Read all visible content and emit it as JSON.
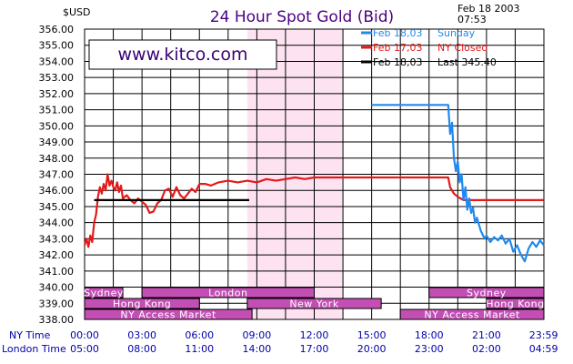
{
  "chart_data": {
    "type": "line",
    "title": "24 Hour Spot Gold (Bid)",
    "ylabel": "$USD",
    "date_line1": "Feb 18 2003",
    "date_line2": "07:53",
    "watermark": "www.kitco.com",
    "ylim": [
      338.0,
      356.0
    ],
    "y_ticks": [
      "338.00",
      "339.00",
      "340.00",
      "341.00",
      "342.00",
      "343.00",
      "344.00",
      "345.00",
      "346.00",
      "347.00",
      "348.00",
      "349.00",
      "350.00",
      "351.00",
      "352.00",
      "353.00",
      "354.00",
      "355.00",
      "356.00"
    ],
    "x_row1_title": "NY Time",
    "x_row2_title": "London Time",
    "x_ticks_ny": [
      "00:00",
      "03:00",
      "06:00",
      "09:00",
      "12:00",
      "15:00",
      "18:00",
      "21:00",
      "23:59"
    ],
    "x_ticks_london": [
      "05:00",
      "08:00",
      "11:00",
      "14:00",
      "17:00",
      "20:00",
      "23:00",
      "02:00",
      "04:59"
    ],
    "x_tick_hours": [
      0,
      3,
      6,
      9,
      12,
      15,
      18,
      21,
      23.983
    ],
    "highlight_hours": [
      8.5,
      13.5
    ],
    "legend": [
      {
        "label": "Feb 18,03",
        "note": "Sunday",
        "color": "#2288ee"
      },
      {
        "label": "Feb 17,03",
        "note": "NY Closed",
        "color": "#e31a1a"
      },
      {
        "label": "Feb 18,03",
        "note": "Last 345.40",
        "color": "#000000"
      }
    ],
    "sessions": [
      {
        "label": "Sydney",
        "start": 0,
        "end": 2,
        "row": 0
      },
      {
        "label": "London",
        "start": 3,
        "end": 12,
        "row": 0
      },
      {
        "label": "Sydney",
        "start": 18,
        "end": 24,
        "row": 0
      },
      {
        "label": "Hong Kong",
        "start": 0,
        "end": 6,
        "row": 1
      },
      {
        "label": "New York",
        "start": 8.5,
        "end": 15.5,
        "row": 1
      },
      {
        "label": "Hong Kong",
        "start": 21,
        "end": 24,
        "row": 1
      },
      {
        "label": "NY Access Market",
        "start": 0,
        "end": 8.75,
        "row": 2
      },
      {
        "label": "NY Access Market",
        "start": 16.5,
        "end": 24,
        "row": 2
      }
    ],
    "series": [
      {
        "name": "Feb 17,03",
        "color": "#e31a1a",
        "x": [
          0,
          0.1,
          0.2,
          0.3,
          0.4,
          0.5,
          0.6,
          0.7,
          0.8,
          0.9,
          1.0,
          1.1,
          1.2,
          1.3,
          1.4,
          1.5,
          1.6,
          1.7,
          1.8,
          1.9,
          2.0,
          2.2,
          2.4,
          2.6,
          2.8,
          3.0,
          3.2,
          3.4,
          3.6,
          3.8,
          4.0,
          4.2,
          4.4,
          4.6,
          4.8,
          5.0,
          5.2,
          5.4,
          5.6,
          5.8,
          6.0,
          6.3,
          6.6,
          7.0,
          7.5,
          8.0,
          8.5,
          9.0,
          9.5,
          10.0,
          10.5,
          11.0,
          11.5,
          12.0,
          12.5,
          13.0,
          14.0,
          15.0,
          16.0,
          17.0,
          18.0,
          18.5,
          19.0,
          19.1,
          19.3,
          19.5,
          19.8,
          20.0,
          20.5,
          21.0,
          22.0,
          23.0,
          23.99
        ],
        "y": [
          342.6,
          343.0,
          342.5,
          343.2,
          342.8,
          344.0,
          344.5,
          345.6,
          346.2,
          345.8,
          346.4,
          346.0,
          347.0,
          346.3,
          346.6,
          346.2,
          346.0,
          346.5,
          345.9,
          346.3,
          345.5,
          345.7,
          345.4,
          345.2,
          345.5,
          345.3,
          345.1,
          344.6,
          344.7,
          345.2,
          345.4,
          346.0,
          346.1,
          345.6,
          346.2,
          345.7,
          345.5,
          345.8,
          346.1,
          345.9,
          346.4,
          346.4,
          346.3,
          346.5,
          346.6,
          346.5,
          346.6,
          346.5,
          346.7,
          346.6,
          346.7,
          346.8,
          346.7,
          346.8,
          346.8,
          346.8,
          346.8,
          346.8,
          346.8,
          346.8,
          346.8,
          346.8,
          346.8,
          346.2,
          345.8,
          345.6,
          345.4,
          345.4,
          345.4,
          345.4,
          345.4,
          345.4,
          345.4
        ]
      },
      {
        "name": "Feb 18,03",
        "color": "#2288ee",
        "x": [
          15.0,
          16.0,
          17.0,
          18.0,
          19.0,
          19.1,
          19.2,
          19.3,
          19.4,
          19.5,
          19.6,
          19.7,
          19.8,
          19.9,
          20.0,
          20.1,
          20.2,
          20.3,
          20.4,
          20.5,
          20.7,
          20.9,
          21.0,
          21.2,
          21.4,
          21.6,
          21.8,
          22.0,
          22.2,
          22.4,
          22.6,
          22.8,
          23.0,
          23.2,
          23.4,
          23.6,
          23.8,
          23.99
        ],
        "y": [
          351.3,
          351.3,
          351.3,
          351.3,
          351.3,
          349.5,
          350.2,
          348.0,
          347.2,
          347.8,
          346.5,
          347.0,
          345.4,
          346.2,
          344.8,
          345.5,
          344.6,
          344.9,
          344.0,
          344.3,
          343.5,
          343.0,
          343.2,
          342.8,
          343.1,
          342.9,
          343.2,
          342.7,
          343.0,
          342.2,
          342.6,
          342.0,
          341.6,
          342.4,
          342.8,
          342.5,
          342.9,
          342.6
        ]
      },
      {
        "name": "Feb 18,03 Last",
        "color": "#000000",
        "x": [
          0.5,
          8.6
        ],
        "y": [
          345.4,
          345.4
        ]
      }
    ]
  }
}
